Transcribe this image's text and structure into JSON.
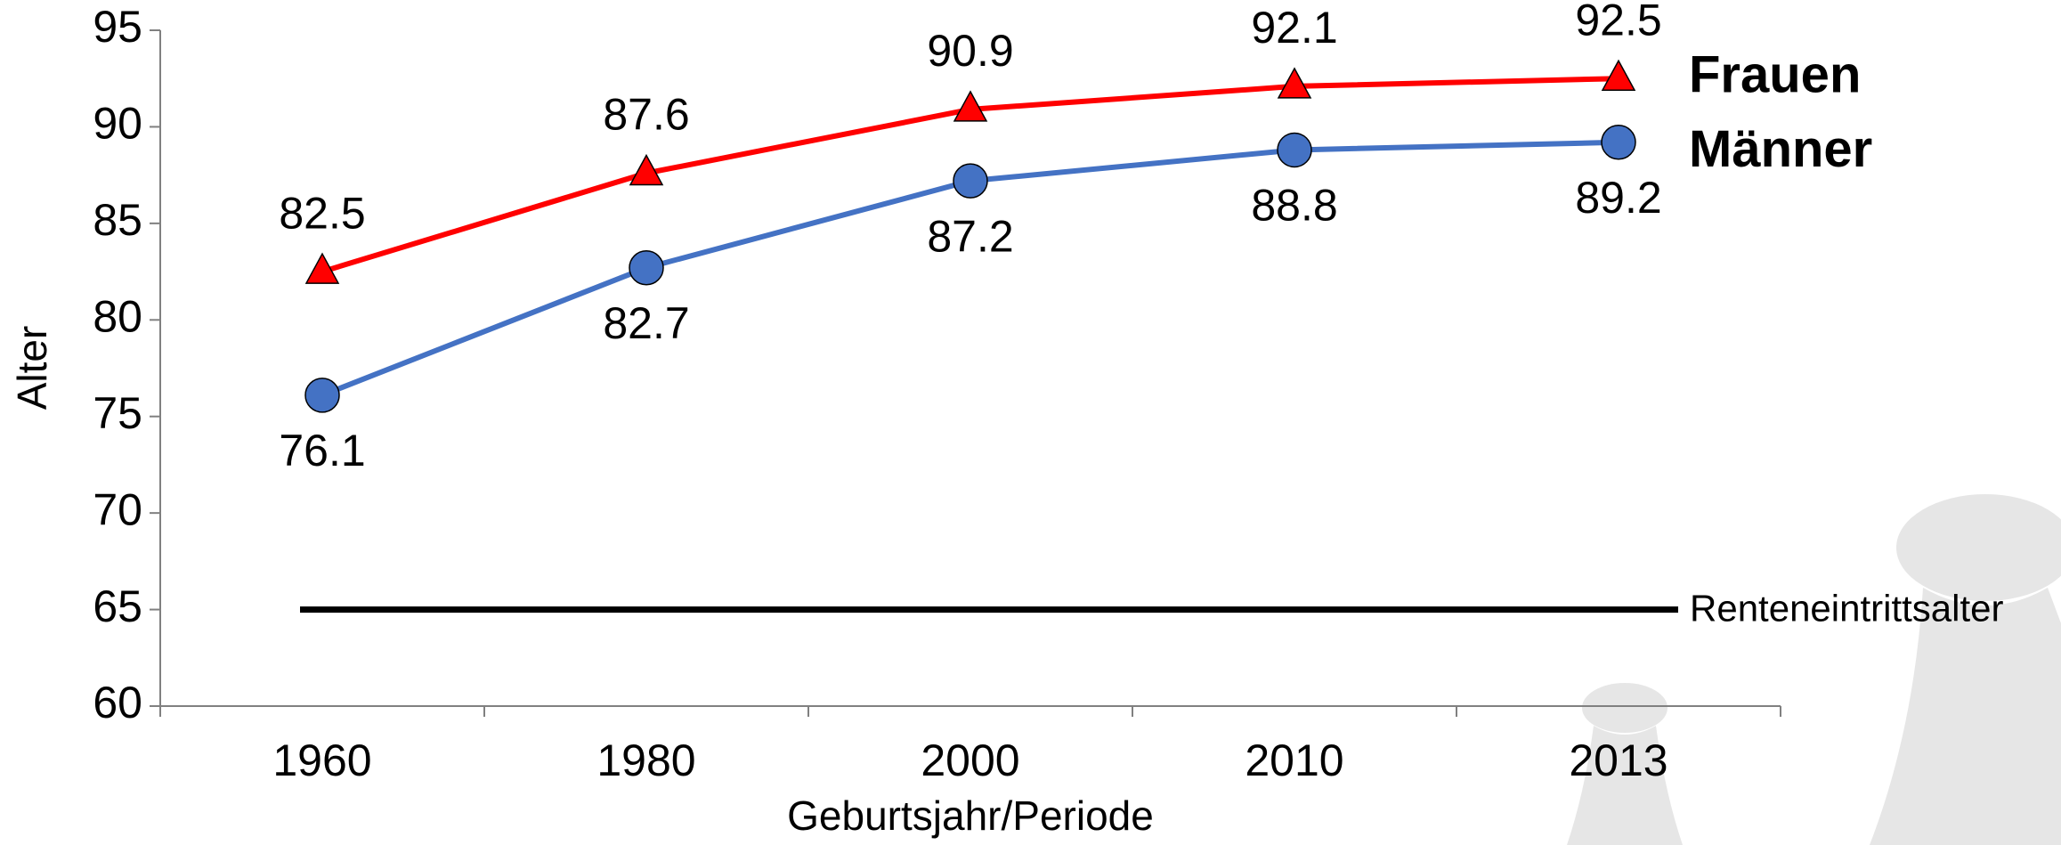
{
  "chart_data": {
    "type": "line",
    "categories": [
      "1960",
      "1980",
      "2000",
      "2010",
      "2013"
    ],
    "series": [
      {
        "name": "Frauen",
        "color": "#ff0000",
        "marker": "triangle",
        "values": [
          82.5,
          87.6,
          90.9,
          92.1,
          92.5
        ]
      },
      {
        "name": "Männer",
        "color": "#4472c4",
        "marker": "circle",
        "values": [
          76.1,
          82.7,
          87.2,
          88.8,
          89.2
        ]
      }
    ],
    "xlabel": "Geburtsjahr/Periode",
    "ylabel": "Alter",
    "ylim": [
      60,
      95
    ],
    "yticks": [
      60,
      65,
      70,
      75,
      80,
      85,
      90,
      95
    ],
    "reference_line": {
      "value": 65,
      "label": "Renteneintrittsalter",
      "color": "#000000"
    },
    "grid": false
  }
}
